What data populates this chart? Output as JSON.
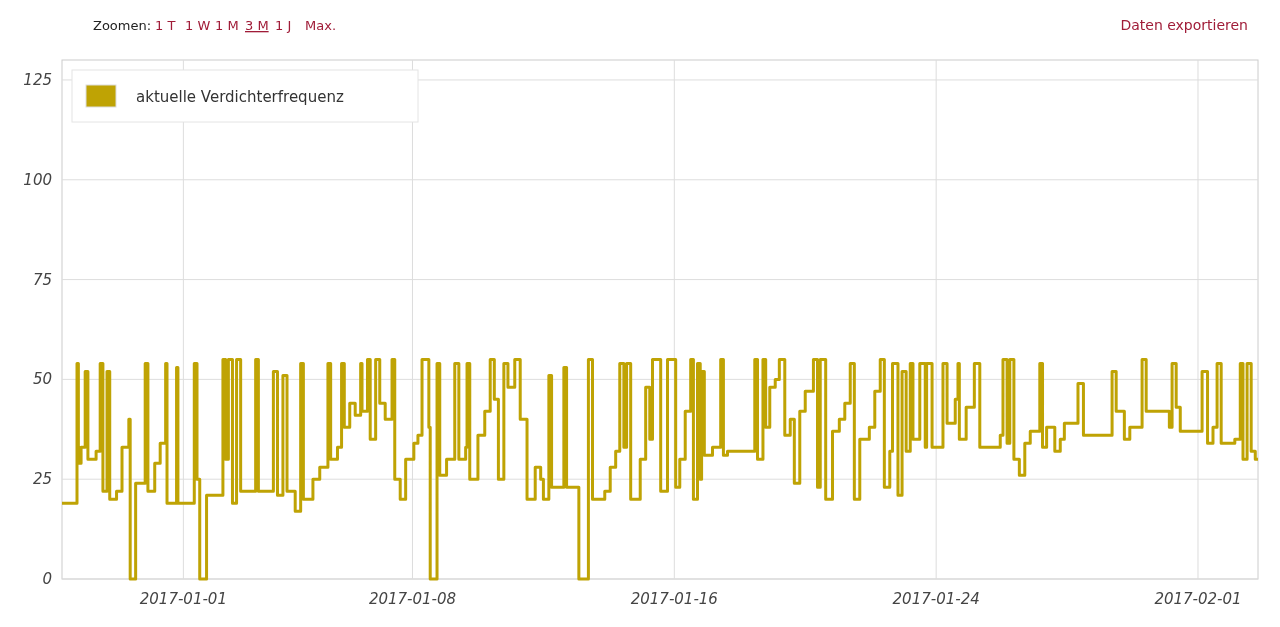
{
  "chart_data": {
    "type": "step",
    "legend": "top left",
    "grid": true,
    "line_style": "solid",
    "annotations": [
      "Zoomen:",
      "1 T",
      "1 W",
      "1 M",
      "3 M",
      "1 J",
      "Max.",
      "Daten exportieren"
    ],
    "xlim": [
      "2016-12-28T07:00",
      "2017-02-02T20:00"
    ],
    "xticks": [
      "2017-01-01",
      "2017-01-08",
      "2017-01-16",
      "2017-01-24",
      "2017-02-01"
    ],
    "ylim": [
      0,
      130
    ],
    "yticks": [
      0,
      25,
      50,
      75,
      100,
      125
    ],
    "x": [
      "2016-12-28T07:00",
      "2016-12-28T18:00",
      "2016-12-28T19:00",
      "2016-12-28T21:00",
      "2016-12-29T00:00",
      "2016-12-29T02:00",
      "2016-12-29T08:00",
      "2016-12-29T11:00",
      "2016-12-29T13:00",
      "2016-12-29T16:00",
      "2016-12-29T18:00",
      "2016-12-29T23:00",
      "2016-12-30T03:00",
      "2016-12-30T08:00",
      "2016-12-30T09:00",
      "2016-12-30T13:00",
      "2016-12-30T20:00",
      "2016-12-30T22:00",
      "2016-12-31T03:00",
      "2016-12-31T07:00",
      "2016-12-31T11:00",
      "2016-12-31T12:00",
      "2016-12-31T19:00",
      "2016-12-31T20:00",
      "2017-01-01T08:00",
      "2017-01-01T10:00",
      "2017-01-01T12:00",
      "2017-01-01T17:00",
      "2017-01-02T05:00",
      "2017-01-02T07:00",
      "2017-01-02T09:00",
      "2017-01-02T12:00",
      "2017-01-02T15:00",
      "2017-01-02T18:00",
      "2017-01-03T05:00",
      "2017-01-03T07:00",
      "2017-01-03T18:00",
      "2017-01-03T21:00",
      "2017-01-04T01:00",
      "2017-01-04T04:00",
      "2017-01-04T10:00",
      "2017-01-04T14:00",
      "2017-01-04T16:00",
      "2017-01-04T23:00",
      "2017-01-05T04:00",
      "2017-01-05T10:00",
      "2017-01-05T12:00",
      "2017-01-05T17:00",
      "2017-01-05T20:00",
      "2017-01-05T22:00",
      "2017-01-06T02:00",
      "2017-01-06T06:00",
      "2017-01-06T10:00",
      "2017-01-06T11:00",
      "2017-01-06T15:00",
      "2017-01-06T17:00",
      "2017-01-06T21:00",
      "2017-01-07T00:00",
      "2017-01-07T04:00",
      "2017-01-07T09:00",
      "2017-01-07T11:00",
      "2017-01-07T15:00",
      "2017-01-07T19:00",
      "2017-01-08T01:00",
      "2017-01-08T04:00",
      "2017-01-08T07:00",
      "2017-01-08T12:00",
      "2017-01-08T13:00",
      "2017-01-08T18:00",
      "2017-01-08T20:00",
      "2017-01-09T01:00",
      "2017-01-09T07:00",
      "2017-01-09T10:00",
      "2017-01-09T15:00",
      "2017-01-09T16:00",
      "2017-01-09T18:00",
      "2017-01-10T00:00",
      "2017-01-10T05:00",
      "2017-01-10T09:00",
      "2017-01-10T12:00",
      "2017-01-10T15:00",
      "2017-01-10T19:00",
      "2017-01-10T22:00",
      "2017-01-11T03:00",
      "2017-01-11T07:00",
      "2017-01-11T12:00",
      "2017-01-11T18:00",
      "2017-01-11T22:00",
      "2017-01-12T00:00",
      "2017-01-12T04:00",
      "2017-01-12T06:00",
      "2017-01-12T15:00",
      "2017-01-12T17:00",
      "2017-01-13T02:00",
      "2017-01-13T09:00",
      "2017-01-13T12:00",
      "2017-01-13T21:00",
      "2017-01-14T01:00",
      "2017-01-14T05:00",
      "2017-01-14T08:00",
      "2017-01-14T11:00",
      "2017-01-14T13:00",
      "2017-01-14T16:00",
      "2017-01-14T23:00",
      "2017-01-15T03:00",
      "2017-01-15T06:00",
      "2017-01-15T08:00",
      "2017-01-15T14:00",
      "2017-01-15T19:00",
      "2017-01-16T01:00",
      "2017-01-16T04:00",
      "2017-01-16T08:00",
      "2017-01-16T12:00",
      "2017-01-16T14:00",
      "2017-01-16T17:00",
      "2017-01-16T19:00",
      "2017-01-16T20:00",
      "2017-01-16T22:00",
      "2017-01-17T04:00",
      "2017-01-17T10:00",
      "2017-01-17T12:00",
      "2017-01-17T15:00",
      "2017-01-18T11:00",
      "2017-01-18T13:00",
      "2017-01-18T17:00",
      "2017-01-18T19:00",
      "2017-01-18T22:00",
      "2017-01-19T02:00",
      "2017-01-19T05:00",
      "2017-01-19T09:00",
      "2017-01-19T13:00",
      "2017-01-19T16:00",
      "2017-01-19T20:00",
      "2017-01-20T00:00",
      "2017-01-20T06:00",
      "2017-01-20T09:00",
      "2017-01-20T11:00",
      "2017-01-20T15:00",
      "2017-01-20T20:00",
      "2017-01-21T01:00",
      "2017-01-21T05:00",
      "2017-01-21T09:00",
      "2017-01-21T12:00",
      "2017-01-21T16:00",
      "2017-01-21T23:00",
      "2017-01-22T03:00",
      "2017-01-22T07:00",
      "2017-01-22T10:00",
      "2017-01-22T14:00",
      "2017-01-22T16:00",
      "2017-01-22T20:00",
      "2017-01-22T23:00",
      "2017-01-23T02:00",
      "2017-01-23T05:00",
      "2017-01-23T07:00",
      "2017-01-23T12:00",
      "2017-01-23T16:00",
      "2017-01-23T17:00",
      "2017-01-23T21:00",
      "2017-01-24T05:00",
      "2017-01-24T08:00",
      "2017-01-24T14:00",
      "2017-01-24T16:00",
      "2017-01-24T17:00",
      "2017-01-24T22:00",
      "2017-01-25T04:00",
      "2017-01-25T08:00",
      "2017-01-25T23:00",
      "2017-01-26T01:00",
      "2017-01-26T04:00",
      "2017-01-26T06:00",
      "2017-01-26T09:00",
      "2017-01-26T13:00",
      "2017-01-26T17:00",
      "2017-01-26T21:00",
      "2017-01-27T04:00",
      "2017-01-27T06:00",
      "2017-01-27T09:00",
      "2017-01-27T15:00",
      "2017-01-27T19:00",
      "2017-01-27T22:00",
      "2017-01-28T08:00",
      "2017-01-28T12:00",
      "2017-01-29T09:00",
      "2017-01-29T12:00",
      "2017-01-29T18:00",
      "2017-01-29T22:00",
      "2017-01-30T07:00",
      "2017-01-30T10:00",
      "2017-01-31T03:00",
      "2017-01-31T05:00",
      "2017-01-31T08:00",
      "2017-01-31T11:00",
      "2017-02-01T03:00",
      "2017-02-01T07:00",
      "2017-02-01T11:00",
      "2017-02-01T14:00",
      "2017-02-01T17:00",
      "2017-02-02T03:00",
      "2017-02-02T07:00",
      "2017-02-02T09:00",
      "2017-02-02T12:00",
      "2017-02-02T15:00",
      "2017-02-02T18:00",
      "2017-02-02T20:00"
    ],
    "series": [
      {
        "name": "aktuelle Verdichterfrequenz",
        "color": "#bfa304",
        "values": [
          19,
          54,
          29,
          33,
          52,
          30,
          32,
          54,
          22,
          52,
          20,
          22,
          33,
          40,
          0,
          24,
          54,
          22,
          29,
          34,
          54,
          19,
          53,
          19,
          54,
          25,
          0,
          21,
          55,
          30,
          55,
          19,
          55,
          22,
          55,
          22,
          52,
          21,
          51,
          22,
          17,
          54,
          20,
          25,
          28,
          54,
          30,
          33,
          54,
          38,
          44,
          41,
          54,
          42,
          55,
          35,
          55,
          44,
          40,
          55,
          25,
          20,
          30,
          34,
          36,
          55,
          38,
          0,
          54,
          26,
          30,
          54,
          30,
          33,
          54,
          25,
          36,
          42,
          55,
          45,
          25,
          54,
          48,
          55,
          40,
          20,
          28,
          25,
          20,
          51,
          23,
          53,
          23,
          0,
          55,
          20,
          22,
          28,
          32,
          54,
          33,
          54,
          20,
          30,
          48,
          35,
          55,
          22,
          55,
          23,
          30,
          42,
          55,
          20,
          54,
          25,
          52,
          31,
          33,
          55,
          31,
          32,
          55,
          30,
          55,
          38,
          48,
          50,
          55,
          36,
          40,
          24,
          42,
          47,
          55,
          23,
          55,
          20,
          37,
          40,
          44,
          54,
          20,
          35,
          38,
          47,
          55,
          23,
          32,
          54,
          21,
          52,
          32,
          54,
          35,
          54,
          33,
          54,
          33,
          54,
          39,
          45,
          54,
          35,
          43,
          54,
          33,
          36,
          55,
          34,
          55,
          30,
          26,
          34,
          37,
          54,
          33,
          38,
          32,
          35,
          39,
          49,
          36,
          52,
          42,
          35,
          38,
          55,
          42,
          38,
          54,
          43,
          37,
          52,
          34,
          38,
          54,
          34,
          35,
          54,
          30,
          54,
          32,
          30,
          30
        ]
      }
    ]
  }
}
